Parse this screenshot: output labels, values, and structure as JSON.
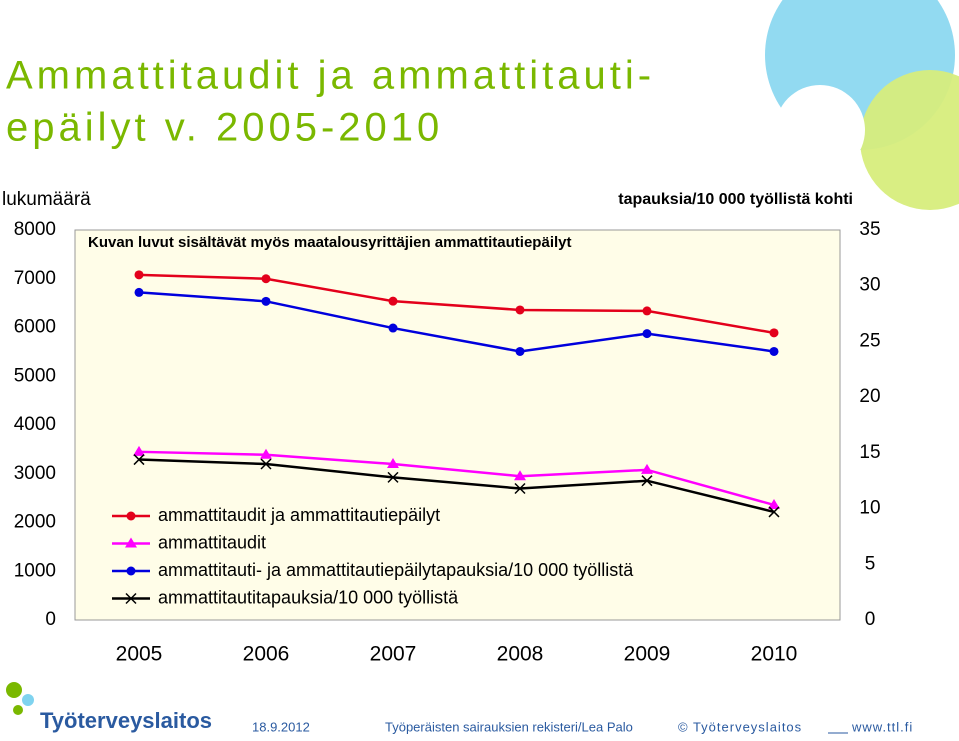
{
  "chart_data": {
    "type": "line",
    "title_lines": [
      "Ammattitaudit ja ammattitauti-",
      "epäilyt v. 2005-2010"
    ],
    "annotation": "Kuvan luvut sisältävät myös maatalousyrittäjien ammattitautiepäilyt",
    "ylabel": "lukumäärä",
    "y2label": "tapauksia/10 000 työllistä kohti",
    "categories": [
      "2005",
      "2006",
      "2007",
      "2008",
      "2009",
      "2010"
    ],
    "ylim": [
      0,
      8000
    ],
    "yticks": [
      0,
      1000,
      2000,
      3000,
      4000,
      5000,
      6000,
      7000,
      8000
    ],
    "y2lim": [
      0,
      35
    ],
    "y2ticks": [
      0,
      5,
      10,
      15,
      20,
      25,
      30,
      35
    ],
    "series": [
      {
        "name": "ammattitaudit ja ammattitautiepäilyt",
        "color": "#e3001b",
        "marker": "circle",
        "values": [
          7080,
          7000,
          6540,
          6360,
          6340,
          5890
        ]
      },
      {
        "name": "ammattitaudit",
        "color": "#ff00ff",
        "marker": "triangle",
        "values": [
          3450,
          3390,
          3200,
          2950,
          3080,
          2360
        ]
      },
      {
        "name": "ammattitauti- ja ammattitautiepäilytapauksia/10 000 työllistä",
        "color": "#0000dd",
        "marker": "circle",
        "axis": "y2",
        "values": [
          29.4,
          28.6,
          26.2,
          24.1,
          25.7,
          24.1
        ]
      },
      {
        "name": "ammattitautitapauksia/10 000 työllistä",
        "color": "#000000",
        "marker": "x",
        "axis": "y2",
        "values": [
          14.4,
          14.0,
          12.8,
          11.8,
          12.5,
          9.7
        ]
      }
    ]
  },
  "footer": {
    "date": "18.9.2012",
    "source": "Työperäisten sairauksien rekisteri/Lea Palo",
    "copyright": "© Työterveyslaitos",
    "url": "www.ttl.fi",
    "logo": "Työterveyslaitos"
  }
}
